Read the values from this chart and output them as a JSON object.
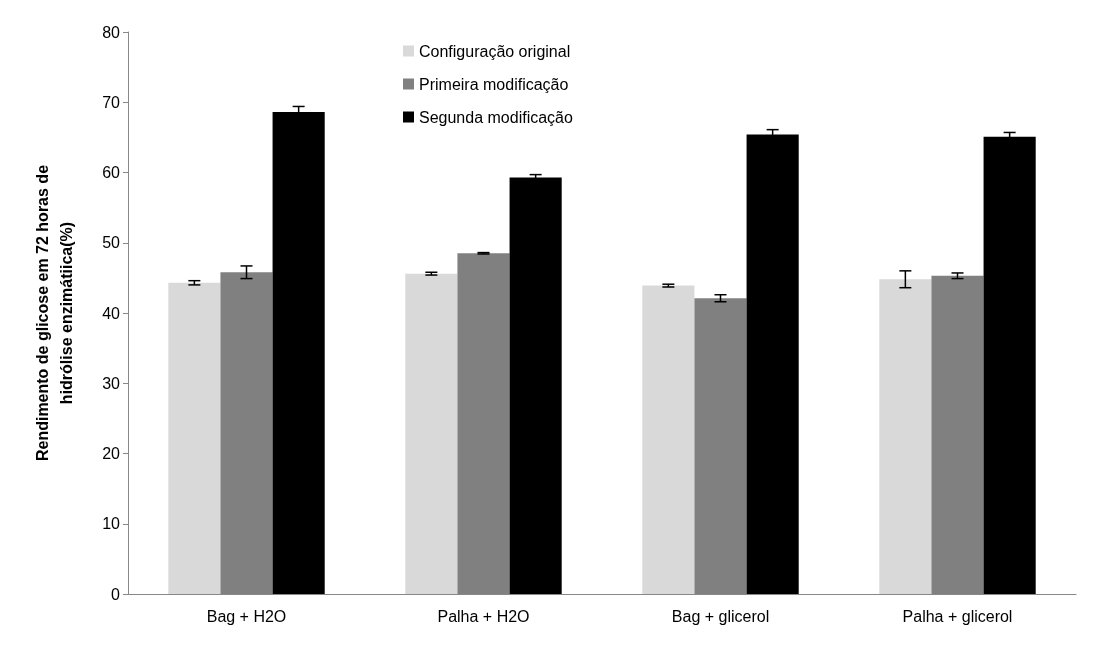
{
  "chart_data": {
    "type": "bar",
    "ylabel": "Rendimento de glicose em 72 horas de\nhidrólise enzimátiica(%)",
    "categories": [
      "Bag + H2O",
      "Palha + H2O",
      "Bag + glicerol",
      "Palha + glicerol"
    ],
    "series": [
      {
        "name": "Configuração original",
        "color": "#d9d9d9",
        "values": [
          44.3,
          45.6,
          43.9,
          44.8
        ],
        "errors": [
          0.3,
          0.2,
          0.2,
          1.2
        ]
      },
      {
        "name": "Primeira modificação",
        "color": "#808080",
        "values": [
          45.8,
          48.5,
          42.1,
          45.3
        ],
        "errors": [
          0.9,
          0.1,
          0.5,
          0.4
        ]
      },
      {
        "name": "Segunda modificação",
        "color": "#000000",
        "values": [
          68.6,
          59.3,
          65.4,
          65.1
        ],
        "errors": [
          0.8,
          0.4,
          0.7,
          0.6
        ]
      }
    ],
    "ylim": [
      0,
      80
    ],
    "yticks": [
      0,
      10,
      20,
      30,
      40,
      50,
      60,
      70,
      80
    ],
    "grid": false,
    "legend": "top"
  }
}
